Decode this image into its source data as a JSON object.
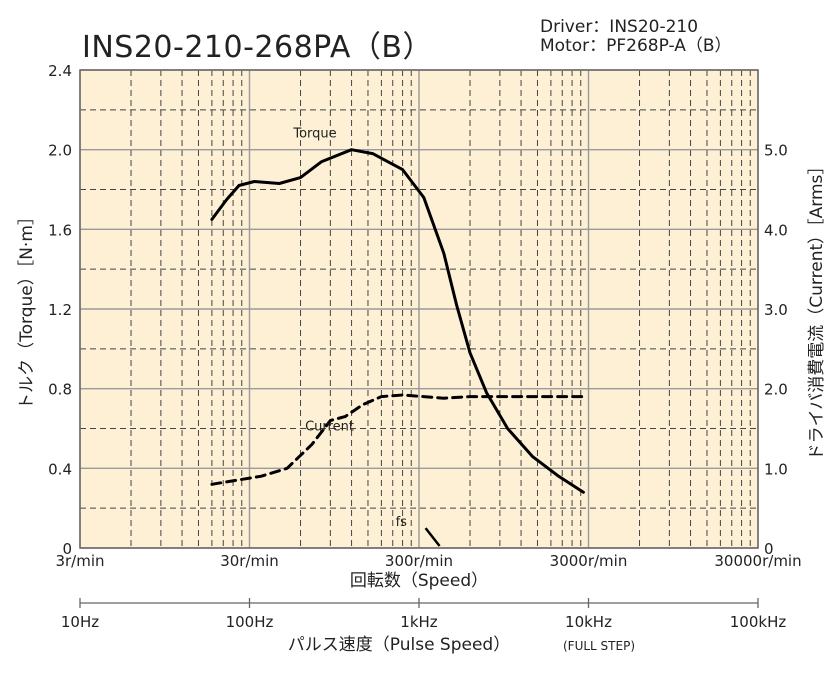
{
  "chart_data": {
    "type": "line",
    "title": "INS20-210-268PA（B）",
    "subtitle_lines": [
      "Driver：INS20-210",
      "Motor：PF268P-A（B）"
    ],
    "xlabel": "回転数（Speed）",
    "x2label": "パルス速度（Pulse Speed）",
    "x2label_suffix": "(FULL STEP)",
    "ylabel": "トルク（Torque）［N·m］",
    "y2label": "ドライバ消費電流（Current）［Arms］",
    "x_scale": "log",
    "xlim": [
      3,
      30000
    ],
    "ylim": [
      0,
      2.4
    ],
    "y2lim": [
      0,
      6.0
    ],
    "x_ticks": [
      {
        "value": 3,
        "label": "3r/min"
      },
      {
        "value": 30,
        "label": "30r/min"
      },
      {
        "value": 300,
        "label": "300r/min"
      },
      {
        "value": 3000,
        "label": "3000r/min"
      },
      {
        "value": 30000,
        "label": "30000r/min"
      }
    ],
    "x2_ticks": [
      {
        "value": 3,
        "label": "10Hz"
      },
      {
        "value": 30,
        "label": "100Hz"
      },
      {
        "value": 300,
        "label": "1kHz"
      },
      {
        "value": 3000,
        "label": "10kHz"
      },
      {
        "value": 30000,
        "label": "100kHz"
      }
    ],
    "y_ticks": [
      "0",
      "0.4",
      "0.8",
      "1.2",
      "1.6",
      "2.0",
      "2.4"
    ],
    "y2_ticks": [
      "0",
      "1.0",
      "2.0",
      "3.0",
      "4.0",
      "5.0"
    ],
    "grid": true,
    "series": [
      {
        "name": "Torque",
        "axis": "left",
        "style": "solid",
        "x": [
          18,
          22,
          26,
          32,
          45,
          60,
          80,
          120,
          160,
          240,
          320,
          420,
          500,
          600,
          750,
          1000,
          1400,
          2000,
          2800
        ],
        "y": [
          1.65,
          1.75,
          1.82,
          1.84,
          1.83,
          1.86,
          1.94,
          2.0,
          1.98,
          1.9,
          1.76,
          1.48,
          1.22,
          0.98,
          0.78,
          0.6,
          0.46,
          0.36,
          0.28
        ]
      },
      {
        "name": "Current",
        "axis": "right",
        "style": "dashed",
        "x": [
          18,
          25,
          35,
          50,
          70,
          90,
          110,
          140,
          180,
          240,
          320,
          420,
          600,
          900,
          1400,
          2000,
          2800
        ],
        "y": [
          0.8,
          0.85,
          0.9,
          1.0,
          1.3,
          1.6,
          1.65,
          1.8,
          1.9,
          1.92,
          1.9,
          1.88,
          1.9,
          1.9,
          1.9,
          1.9,
          1.9
        ]
      }
    ],
    "annotations": [
      {
        "text": "fs",
        "x": 250,
        "y": 0.03
      }
    ],
    "colors": {
      "plot_background": "#fdf0d5",
      "grid_major": "#9a9a9a",
      "grid_minor": "#444444",
      "curve": "#000000",
      "axis": "#666666"
    }
  }
}
